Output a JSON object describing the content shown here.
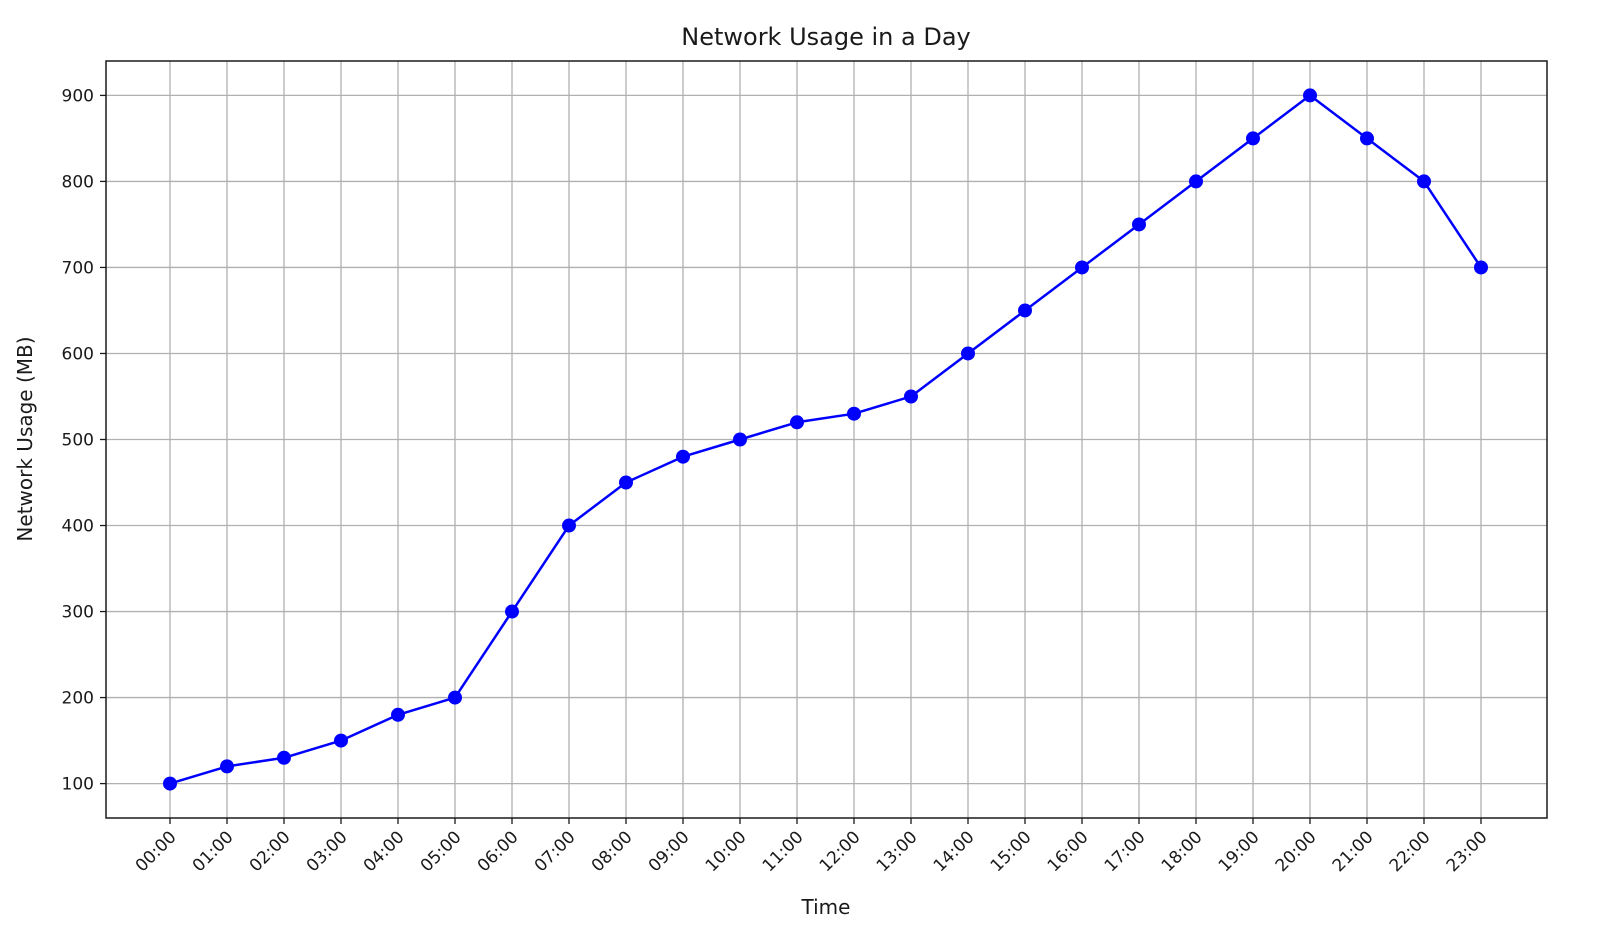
{
  "chart_data": {
    "type": "line",
    "title": "Network Usage in a Day",
    "xlabel": "Time",
    "ylabel": "Network Usage (MB)",
    "categories": [
      "00:00",
      "01:00",
      "02:00",
      "03:00",
      "04:00",
      "05:00",
      "06:00",
      "07:00",
      "08:00",
      "09:00",
      "10:00",
      "11:00",
      "12:00",
      "13:00",
      "14:00",
      "15:00",
      "16:00",
      "17:00",
      "18:00",
      "19:00",
      "20:00",
      "21:00",
      "22:00",
      "23:00"
    ],
    "series": [
      {
        "values": [
          100,
          120,
          130,
          150,
          180,
          200,
          300,
          400,
          450,
          480,
          500,
          520,
          530,
          550,
          600,
          650,
          700,
          750,
          800,
          850,
          900,
          850,
          800,
          700
        ]
      }
    ],
    "ylim": [
      60,
      940
    ],
    "yticks": [
      "100",
      "200",
      "300",
      "400",
      "500",
      "600",
      "700",
      "800",
      "900"
    ],
    "grid": true,
    "marker": "circle",
    "color": "#0000ff"
  }
}
